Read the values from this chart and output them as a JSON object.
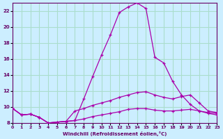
{
  "xlabel": "Windchill (Refroidissement éolien,°C)",
  "bg_color": "#cceeff",
  "grid_color": "#aaddcc",
  "line_color": "#aa00aa",
  "xlim": [
    0,
    23
  ],
  "ylim": [
    8,
    23
  ],
  "yticks": [
    8,
    10,
    12,
    14,
    16,
    18,
    20,
    22
  ],
  "xticks": [
    0,
    1,
    2,
    3,
    4,
    5,
    6,
    7,
    8,
    9,
    10,
    11,
    12,
    13,
    14,
    15,
    16,
    17,
    18,
    19,
    20,
    21,
    22,
    23
  ],
  "line1_x": [
    0,
    1,
    2,
    3,
    4,
    5,
    6,
    7,
    8,
    9,
    10,
    11,
    12,
    13,
    14,
    15,
    16,
    17,
    18,
    19,
    20,
    21,
    22,
    23
  ],
  "line1_y": [
    9.8,
    9.0,
    9.1,
    8.7,
    8.0,
    8.1,
    8.2,
    8.3,
    11.0,
    13.8,
    16.5,
    19.0,
    21.8,
    22.5,
    23.0,
    22.3,
    16.2,
    15.5,
    13.2,
    11.5,
    10.3,
    9.5,
    9.2,
    9.0
  ],
  "line2_x": [
    0,
    1,
    2,
    3,
    4,
    5,
    6,
    7,
    8,
    9,
    10,
    11,
    12,
    13,
    14,
    15,
    16,
    17,
    18,
    19,
    20,
    21,
    22,
    23
  ],
  "line2_y": [
    9.8,
    9.0,
    9.1,
    8.7,
    8.0,
    8.1,
    8.2,
    9.5,
    9.8,
    10.2,
    10.5,
    10.8,
    11.2,
    11.5,
    11.8,
    11.9,
    11.5,
    11.2,
    11.0,
    11.3,
    11.5,
    10.5,
    9.5,
    9.3
  ],
  "line3_x": [
    0,
    1,
    2,
    3,
    4,
    5,
    6,
    7,
    8,
    9,
    10,
    11,
    12,
    13,
    14,
    15,
    16,
    17,
    18,
    19,
    20,
    21,
    22,
    23
  ],
  "line3_y": [
    9.8,
    9.0,
    9.1,
    8.7,
    8.0,
    8.1,
    8.2,
    8.3,
    8.5,
    8.8,
    9.0,
    9.2,
    9.4,
    9.7,
    9.8,
    9.8,
    9.6,
    9.5,
    9.5,
    9.6,
    9.7,
    9.5,
    9.3,
    9.2
  ]
}
